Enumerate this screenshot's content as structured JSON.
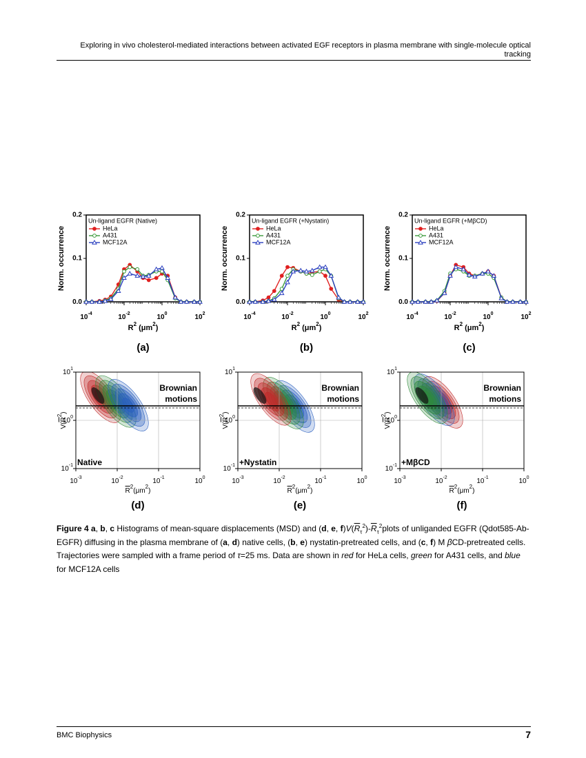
{
  "header": {
    "title": "Exploring in vivo cholesterol-mediated interactions between activated EGF receptors in plasma membrane with single-molecule optical tracking"
  },
  "figure": {
    "histograms": [
      {
        "type": "line",
        "title": "Un-ligand EGFR (Native)",
        "label": "(a)",
        "ylabel": "Norm. occurrence",
        "xlabel": [
          {
            "t": "R"
          },
          {
            "t": "2",
            "s": "sup"
          },
          {
            "t": " (μm"
          },
          {
            "t": "2",
            "s": "sup"
          },
          {
            "t": ")"
          }
        ],
        "log_x": true,
        "xlim": [
          0.0001,
          100
        ],
        "ylim": [
          0,
          0.2
        ],
        "xticks": [
          {
            "value": 0.0001,
            "label": "10",
            "exponent": "-4"
          },
          {
            "value": 0.01,
            "label": "10",
            "exponent": "-2"
          },
          {
            "value": 1,
            "label": "10",
            "exponent": "0"
          },
          {
            "value": 100,
            "label": "10",
            "exponent": "2"
          }
        ],
        "yticks": [
          {
            "value": 0,
            "label": "0.0"
          },
          0.1,
          0.2
        ],
        "x": [
          0.0001,
          0.0002,
          0.0005,
          0.001,
          0.002,
          0.005,
          0.01,
          0.02,
          0.05,
          0.1,
          0.2,
          0.5,
          1,
          2,
          5,
          10,
          20,
          50,
          100
        ],
        "series": [
          {
            "name": "HeLa",
            "color": "#e02020",
            "marker": "filled-circle",
            "values": [
              0,
              0,
              0.002,
              0.005,
              0.012,
              0.04,
              0.075,
              0.085,
              0.07,
              0.055,
              0.05,
              0.055,
              0.065,
              0.06,
              0.01,
              0,
              0,
              0,
              0
            ]
          },
          {
            "name": "A431",
            "color": "#3a9a3a",
            "marker": "open-circle",
            "values": [
              0,
              0,
              0,
              0.003,
              0.008,
              0.03,
              0.07,
              0.08,
              0.075,
              0.06,
              0.062,
              0.07,
              0.07,
              0.05,
              0.008,
              0,
              0,
              0,
              0
            ]
          },
          {
            "name": "MCF12A",
            "color": "#2a3fbf",
            "marker": "open-triangle",
            "values": [
              0,
              0,
              0,
              0.002,
              0.006,
              0.025,
              0.055,
              0.065,
              0.06,
              0.058,
              0.06,
              0.075,
              0.078,
              0.055,
              0.01,
              0,
              0,
              0,
              0
            ]
          }
        ]
      },
      {
        "type": "line",
        "title": "Un-ligand EGFR (+Nystatin)",
        "label": "(b)",
        "ylabel": "Norm. occurrence",
        "xlabel": [
          {
            "t": "R"
          },
          {
            "t": "2",
            "s": "sup"
          },
          {
            "t": " (μm"
          },
          {
            "t": "2",
            "s": "sup"
          },
          {
            "t": ")"
          }
        ],
        "log_x": true,
        "xlim": [
          0.0001,
          100
        ],
        "ylim": [
          0,
          0.2
        ],
        "xticks": [
          {
            "value": 0.0001,
            "label": "10",
            "exponent": "-4"
          },
          {
            "value": 0.01,
            "label": "10",
            "exponent": "-2"
          },
          {
            "value": 1,
            "label": "10",
            "exponent": "0"
          },
          {
            "value": 100,
            "label": "10",
            "exponent": "2"
          }
        ],
        "yticks": [
          {
            "value": 0,
            "label": "0.0"
          },
          0.1,
          0.2
        ],
        "x": [
          0.0001,
          0.0002,
          0.0005,
          0.001,
          0.002,
          0.005,
          0.01,
          0.02,
          0.05,
          0.1,
          0.2,
          0.5,
          1,
          2,
          5,
          10,
          20,
          50,
          100
        ],
        "series": [
          {
            "name": "HeLa",
            "color": "#e02020",
            "marker": "filled-circle",
            "values": [
              0,
              0,
              0.003,
              0.01,
              0.025,
              0.06,
              0.08,
              0.078,
              0.07,
              0.065,
              0.068,
              0.07,
              0.06,
              0.03,
              0.005,
              0,
              0,
              0,
              0
            ]
          },
          {
            "name": "A431",
            "color": "#3a9a3a",
            "marker": "open-circle",
            "values": [
              0,
              0,
              0,
              0.002,
              0.008,
              0.03,
              0.06,
              0.075,
              0.07,
              0.065,
              0.062,
              0.07,
              0.075,
              0.06,
              0.008,
              0,
              0,
              0,
              0
            ]
          },
          {
            "name": "MCF12A",
            "color": "#2a3fbf",
            "marker": "open-triangle",
            "values": [
              0,
              0,
              0,
              0.002,
              0.005,
              0.02,
              0.045,
              0.07,
              0.072,
              0.07,
              0.072,
              0.08,
              0.08,
              0.06,
              0.01,
              0,
              0,
              0,
              0
            ]
          }
        ]
      },
      {
        "type": "line",
        "title": "Un-ligand EGFR (+MβCD)",
        "label": "(c)",
        "ylabel": "Norm. occurrence",
        "xlabel": [
          {
            "t": "R"
          },
          {
            "t": "2",
            "s": "sup"
          },
          {
            "t": " (μm"
          },
          {
            "t": "2",
            "s": "sup"
          },
          {
            "t": ")"
          }
        ],
        "log_x": true,
        "xlim": [
          0.0001,
          100
        ],
        "ylim": [
          0,
          0.2
        ],
        "xticks": [
          {
            "value": 0.0001,
            "label": "10",
            "exponent": "-4"
          },
          {
            "value": 0.01,
            "label": "10",
            "exponent": "-2"
          },
          {
            "value": 1,
            "label": "10",
            "exponent": "0"
          },
          {
            "value": 100,
            "label": "10",
            "exponent": "2"
          }
        ],
        "yticks": [
          {
            "value": 0,
            "label": "0.0"
          },
          0.1,
          0.2
        ],
        "x": [
          0.0001,
          0.0002,
          0.0005,
          0.001,
          0.002,
          0.005,
          0.01,
          0.02,
          0.05,
          0.1,
          0.2,
          0.5,
          1,
          2,
          5,
          10,
          20,
          50,
          100
        ],
        "series": [
          {
            "name": "HeLa",
            "color": "#e02020",
            "marker": "filled-circle",
            "values": [
              0,
              0,
              0,
              0,
              0.002,
              0.02,
              0.06,
              0.085,
              0.08,
              0.065,
              0.06,
              0.065,
              0.07,
              0.06,
              0.01,
              0,
              0,
              0,
              0
            ]
          },
          {
            "name": "A431",
            "color": "#3a9a3a",
            "marker": "open-circle",
            "values": [
              0,
              0,
              0,
              0,
              0.003,
              0.025,
              0.065,
              0.075,
              0.07,
              0.06,
              0.06,
              0.065,
              0.065,
              0.055,
              0.01,
              0,
              0,
              0,
              0
            ]
          },
          {
            "name": "MCF12A",
            "color": "#2a3fbf",
            "marker": "open-triangle",
            "values": [
              0,
              0,
              0,
              0,
              0.003,
              0.02,
              0.06,
              0.08,
              0.075,
              0.062,
              0.058,
              0.065,
              0.07,
              0.06,
              0.008,
              0,
              0,
              0,
              0
            ]
          }
        ]
      }
    ],
    "contours": [
      {
        "type": "contour",
        "condition": "Native",
        "label": "(d)",
        "region": [
          "Brownian",
          "motions"
        ],
        "ylabel": [
          {
            "t": "V("
          },
          {
            "t": "R",
            "s": "ov"
          },
          {
            "t": "2",
            "s": "sup"
          },
          {
            "t": ")"
          }
        ],
        "xlabel": [
          {
            "t": "R",
            "s": "ov"
          },
          {
            "t": "2",
            "s": "sup"
          },
          {
            "t": "(μm"
          },
          {
            "t": "2",
            "s": "sup"
          },
          {
            "t": ")"
          }
        ],
        "log_x": true,
        "log_y": true,
        "xlim": [
          0.001,
          1
        ],
        "ylim": [
          0.1,
          10
        ],
        "xticks": [
          {
            "value": 0.001,
            "label": "10",
            "exponent": "-3"
          },
          {
            "value": 0.01,
            "label": "10",
            "exponent": "-2"
          },
          {
            "value": 0.1,
            "label": "10",
            "exponent": "-1"
          },
          {
            "value": 1,
            "label": "10",
            "exponent": "0"
          }
        ],
        "yticks": [
          {
            "value": 0.1,
            "label": "10",
            "exponent": "-1"
          },
          {
            "value": 1,
            "label": "10",
            "exponent": "0"
          },
          {
            "value": 10,
            "label": "10",
            "exponent": "1"
          }
        ]
      },
      {
        "type": "contour",
        "condition": "+Nystatin",
        "label": "(e)",
        "region": [
          "Brownian",
          "motions"
        ],
        "ylabel": [
          {
            "t": "V("
          },
          {
            "t": "R",
            "s": "ov"
          },
          {
            "t": "2",
            "s": "sup"
          },
          {
            "t": ")"
          }
        ],
        "xlabel": [
          {
            "t": "R",
            "s": "ov"
          },
          {
            "t": "2",
            "s": "sup"
          },
          {
            "t": "(μm"
          },
          {
            "t": "2",
            "s": "sup"
          },
          {
            "t": ")"
          }
        ],
        "log_x": true,
        "log_y": true,
        "xlim": [
          0.001,
          1
        ],
        "ylim": [
          0.1,
          10
        ],
        "xticks": [
          {
            "value": 0.001,
            "label": "10",
            "exponent": "-3"
          },
          {
            "value": 0.01,
            "label": "10",
            "exponent": "-2"
          },
          {
            "value": 0.1,
            "label": "10",
            "exponent": "-1"
          },
          {
            "value": 1,
            "label": "10",
            "exponent": "0"
          }
        ],
        "yticks": [
          {
            "value": 0.1,
            "label": "10",
            "exponent": "-1"
          },
          {
            "value": 1,
            "label": "10",
            "exponent": "0"
          },
          {
            "value": 10,
            "label": "10",
            "exponent": "1"
          }
        ]
      },
      {
        "type": "contour",
        "condition": "+MβCD",
        "label": "(f)",
        "region": [
          "Brownian",
          "motions"
        ],
        "ylabel": [
          {
            "t": "V("
          },
          {
            "t": "R",
            "s": "ov"
          },
          {
            "t": "2",
            "s": "sup"
          },
          {
            "t": ")"
          }
        ],
        "xlabel": [
          {
            "t": "R",
            "s": "ov"
          },
          {
            "t": "2",
            "s": "sup"
          },
          {
            "t": "(μm"
          },
          {
            "t": "2",
            "s": "sup"
          },
          {
            "t": ")"
          }
        ],
        "log_x": true,
        "log_y": true,
        "xlim": [
          0.001,
          1
        ],
        "ylim": [
          0.1,
          10
        ],
        "xticks": [
          {
            "value": 0.001,
            "label": "10",
            "exponent": "-3"
          },
          {
            "value": 0.01,
            "label": "10",
            "exponent": "-2"
          },
          {
            "value": 0.1,
            "label": "10",
            "exponent": "-1"
          },
          {
            "value": 1,
            "label": "10",
            "exponent": "0"
          }
        ],
        "yticks": [
          {
            "value": 0.1,
            "label": "10",
            "exponent": "-1"
          },
          {
            "value": 1,
            "label": "10",
            "exponent": "0"
          },
          {
            "value": 10,
            "label": "10",
            "exponent": "1"
          }
        ]
      }
    ]
  },
  "caption": [
    {
      "t": "Figure 4",
      "s": "b"
    },
    {
      "t": " "
    },
    {
      "t": "a",
      "s": "b"
    },
    {
      "t": ", "
    },
    {
      "t": "b",
      "s": "b"
    },
    {
      "t": ", "
    },
    {
      "t": "c",
      "s": "b"
    },
    {
      "t": " Histograms of mean-square displacements (MSD) and ("
    },
    {
      "t": "d",
      "s": "b"
    },
    {
      "t": ", "
    },
    {
      "t": "e",
      "s": "b"
    },
    {
      "t": ", "
    },
    {
      "t": "f",
      "s": "b"
    },
    {
      "t": ")"
    },
    {
      "t": "V",
      "s": "i"
    },
    {
      "t": "("
    },
    {
      "t": "R",
      "s": "iov"
    },
    {
      "t": "τ",
      "s": "sub"
    },
    {
      "t": "2",
      "s": "sup"
    },
    {
      "t": ")-"
    },
    {
      "t": "R",
      "s": "iov"
    },
    {
      "t": "τ",
      "s": "sub"
    },
    {
      "t": "2",
      "s": "sup"
    },
    {
      "t": "plots of unliganded EGFR (Qdot585-Ab-EGFR) diffusing in the plasma membrane of ("
    },
    {
      "t": "a",
      "s": "b"
    },
    {
      "t": ", "
    },
    {
      "t": "d",
      "s": "b"
    },
    {
      "t": ") native cells, ("
    },
    {
      "t": "b",
      "s": "b"
    },
    {
      "t": ", "
    },
    {
      "t": "e",
      "s": "b"
    },
    {
      "t": ") nystatin-pretreated cells, and ("
    },
    {
      "t": "c",
      "s": "b"
    },
    {
      "t": ", "
    },
    {
      "t": "f",
      "s": "b"
    },
    {
      "t": ") M "
    },
    {
      "t": "β",
      "s": "i"
    },
    {
      "t": "CD-pretreated cells. Trajectories were sampled with a frame period of "
    },
    {
      "t": "τ",
      "s": "i"
    },
    {
      "t": "=25 ms. Data are shown in "
    },
    {
      "t": "red",
      "s": "i"
    },
    {
      "t": " for HeLa cells, "
    },
    {
      "t": "green",
      "s": "i"
    },
    {
      "t": " for A431 cells, and "
    },
    {
      "t": "blue",
      "s": "i"
    },
    {
      "t": " for MCF12A cells"
    }
  ],
  "footer": {
    "journal": "BMC Biophysics",
    "page": "7"
  }
}
